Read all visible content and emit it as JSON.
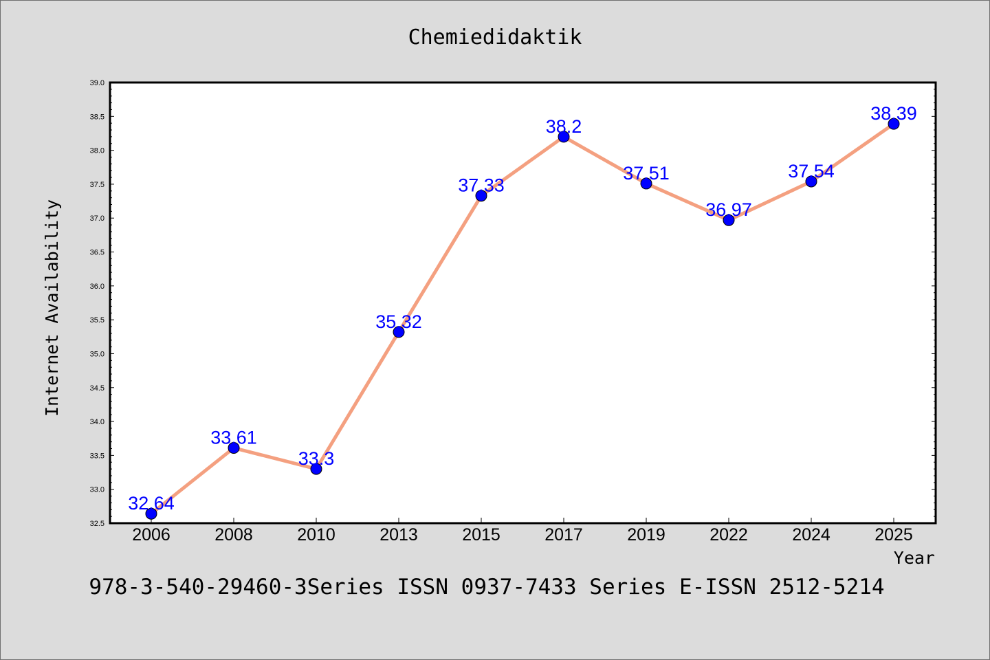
{
  "chart_data": {
    "type": "line",
    "title": "Chemiedidaktik",
    "xlabel": "Year",
    "ylabel": "Internet Availability",
    "categories": [
      "2006",
      "2008",
      "2010",
      "2013",
      "2015",
      "2017",
      "2019",
      "2022",
      "2024",
      "2025"
    ],
    "series": [
      {
        "values": [
          32.64,
          33.61,
          33.3,
          35.32,
          37.33,
          38.2,
          37.51,
          36.97,
          37.54,
          38.39
        ],
        "labels": [
          "32.64",
          "33.61",
          "33.3",
          "35.32",
          "37.33",
          "38.2",
          "37.51",
          "36.97",
          "37.54",
          "38.39"
        ],
        "line_color": "#f4a080",
        "marker_color": "#0000ff"
      }
    ],
    "ylim": [
      32.5,
      39.0
    ],
    "yticks": [
      "32.5",
      "33.0",
      "33.5",
      "34.0",
      "34.5",
      "35.0",
      "35.5",
      "36.0",
      "36.5",
      "37.0",
      "37.5",
      "38.0",
      "38.5",
      "39.0"
    ],
    "grid": false,
    "legend": "none"
  },
  "footer": {
    "text": "978-3-540-29460-3Series ISSN 0937-7433 Series E-ISSN 2512-5214"
  },
  "colors": {
    "background": "#dcdcdc",
    "plot_background": "#ffffff",
    "data_label": "#0000ff"
  }
}
